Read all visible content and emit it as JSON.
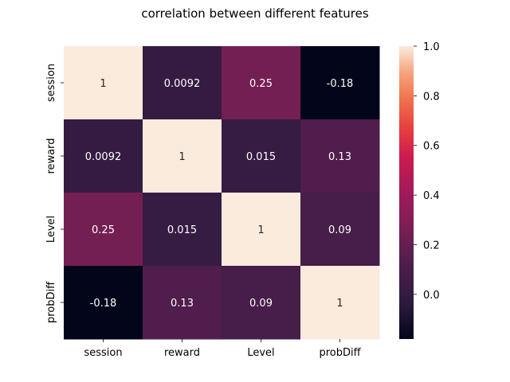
{
  "chart_data": {
    "type": "heatmap",
    "title": "correlation between different features",
    "x_categories": [
      "session",
      "reward",
      "Level",
      "probDiff"
    ],
    "y_categories": [
      "session",
      "reward",
      "Level",
      "probDiff"
    ],
    "values": [
      [
        1,
        0.0092,
        0.25,
        -0.18
      ],
      [
        0.0092,
        1,
        0.015,
        0.13
      ],
      [
        0.25,
        0.015,
        1,
        0.09
      ],
      [
        -0.18,
        0.13,
        0.09,
        1
      ]
    ],
    "value_labels": [
      [
        "1",
        "0.0092",
        "0.25",
        "-0.18"
      ],
      [
        "0.0092",
        "1",
        "0.015",
        "0.13"
      ],
      [
        "0.25",
        "0.015",
        "1",
        "0.09"
      ],
      [
        "-0.18",
        "0.13",
        "0.09",
        "1"
      ]
    ],
    "colormap": "rocket",
    "colorbar": {
      "range": [
        -0.18,
        1.0
      ],
      "ticks": [
        0.0,
        0.2,
        0.4,
        0.6,
        0.8,
        1.0
      ],
      "tick_labels": [
        "0.0",
        "0.2",
        "0.4",
        "0.6",
        "0.8",
        "1.0"
      ]
    },
    "xlabel": "",
    "ylabel": ""
  }
}
